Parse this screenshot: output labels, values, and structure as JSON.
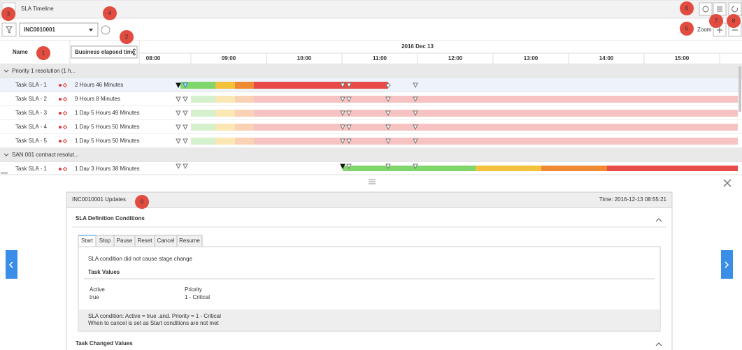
{
  "header": {
    "title": "SLA Timeline"
  },
  "toolbar": {
    "record": "INC0010001",
    "zoom_label": "Zoom"
  },
  "callouts": [
    "1",
    "2",
    "3",
    "4",
    "5",
    "6",
    "7",
    "8",
    "9"
  ],
  "timeline": {
    "name_header": "Name",
    "column_select": "Business elapsed time",
    "date": "2016 Dec 13",
    "hours": [
      "08:00",
      "09:00",
      "10:00",
      "11:00",
      "12:00",
      "13:00",
      "14:00",
      "15:00"
    ],
    "groups": [
      {
        "label": "Priority 1 resolution (1 h...",
        "rows": [
          {
            "name": "Task SLA - 1",
            "elapsed": "2 Hours 46 Minutes"
          },
          {
            "name": "Task SLA - 2",
            "elapsed": "9 Hours 8 Minutes"
          },
          {
            "name": "Task SLA - 3",
            "elapsed": "1 Day 5 Hours 49 Minutes"
          },
          {
            "name": "Task SLA - 4",
            "elapsed": "1 Day 5 Hours 50 Minutes"
          },
          {
            "name": "Task SLA - 5",
            "elapsed": "1 Day 5 Hours 50 Minutes"
          }
        ]
      },
      {
        "label": "SAN 001 contract resolut...",
        "rows": [
          {
            "name": "Task SLA - 1",
            "elapsed": "1 Day 3 Hours 38 Minutes"
          }
        ]
      }
    ]
  },
  "details": {
    "title": "INC0010001 Updates",
    "time": "Time: 2016-12-13 08:55:21",
    "section": "SLA Definition Conditions",
    "tabs": [
      "Start",
      "Stop",
      "Pause",
      "Reset",
      "Cancel",
      "Resume"
    ],
    "message": "SLA condition did not cause stage change",
    "task_values_title": "Task Values",
    "fields": [
      {
        "label": "Active",
        "value": "true"
      },
      {
        "label": "Priority",
        "value": "1 - Critical"
      }
    ],
    "footer": [
      "SLA condition:  Active = true .and. Priority = 1 - Critical",
      "When to cancel is set as Start conditions are not met"
    ],
    "next_section": "Task Changed Values"
  }
}
